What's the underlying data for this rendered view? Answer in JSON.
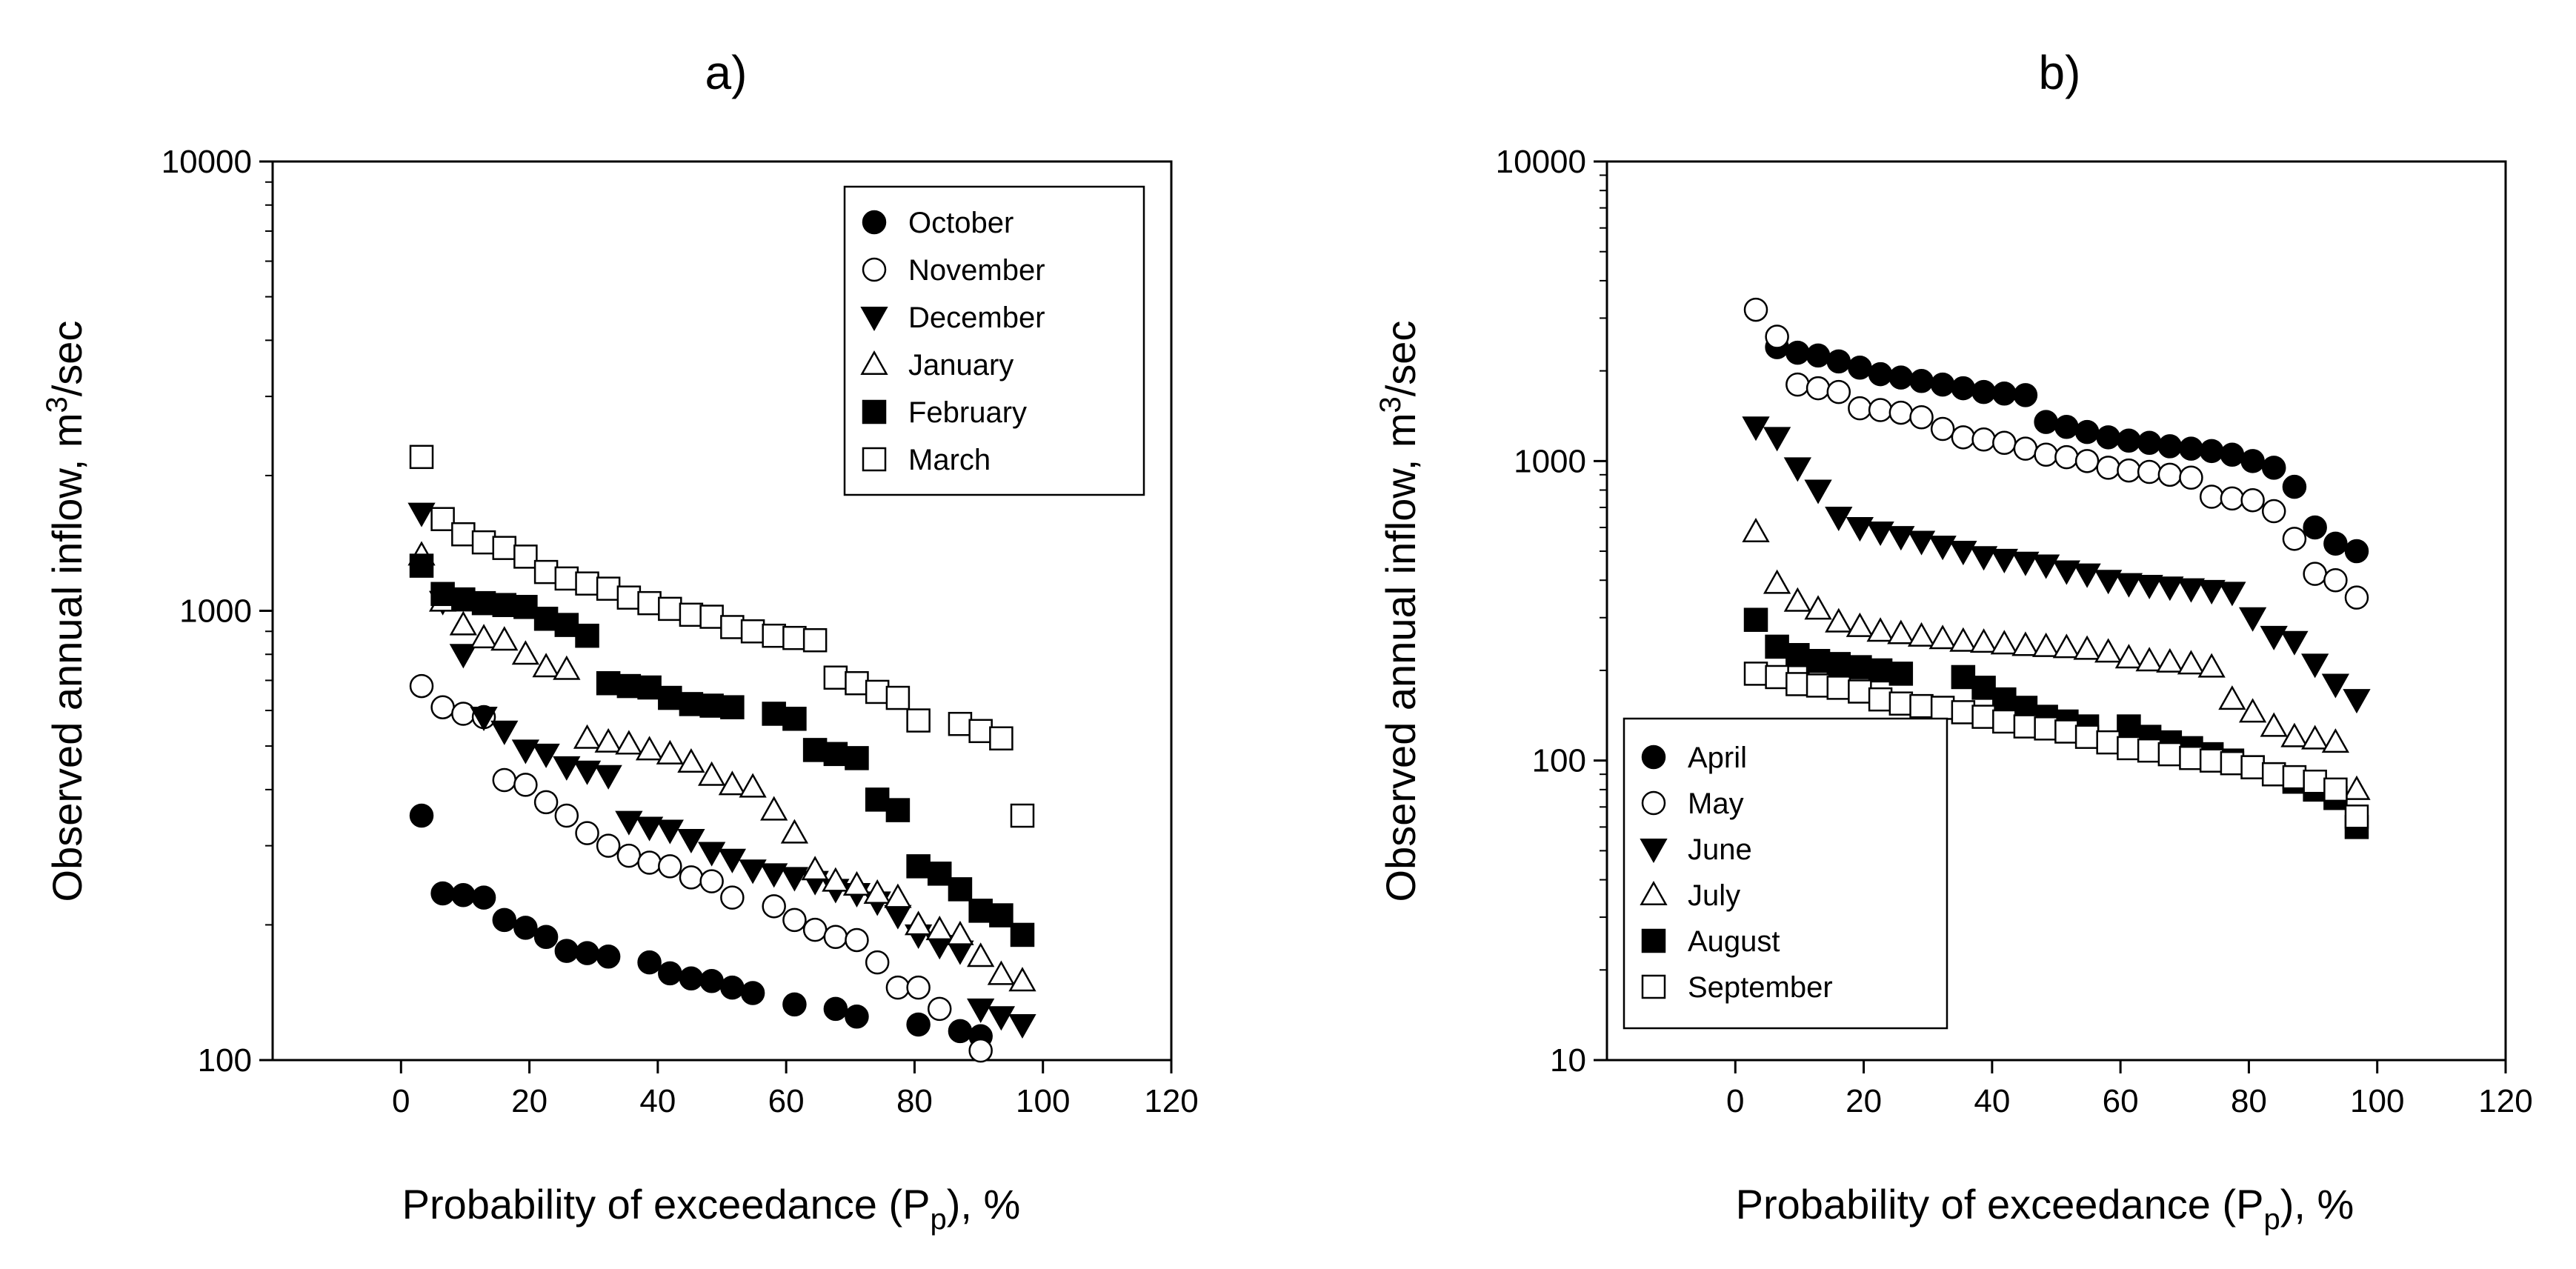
{
  "figure": {
    "panels_note": "Two log-scale scatter panels"
  },
  "chart_data": [
    {
      "type": "scatter",
      "title": "a)",
      "xlabel": "Probability of exceedance (P",
      "xlabel_sub": "p",
      "xlabel_tail": "), %",
      "ylabel": "Observed annual inflow, m",
      "ylabel_sup": "3",
      "ylabel_tail": "/sec",
      "xlim": [
        -20,
        120
      ],
      "ylim": [
        100,
        10000
      ],
      "yscale": "log",
      "xticks": [
        0,
        20,
        40,
        60,
        80,
        100,
        120
      ],
      "xtick_labels": [
        "0",
        "20",
        "40",
        "60",
        "80",
        "100",
        "120"
      ],
      "yticks": [
        100,
        1000,
        10000
      ],
      "ytick_labels": [
        "100",
        "1000",
        "10000"
      ],
      "legend_position": "top-right",
      "series": [
        {
          "name": "October",
          "marker": "circle",
          "filled": true,
          "x": [
            3.2,
            6.5,
            9.7,
            12.9,
            16.1,
            19.4,
            22.6,
            25.8,
            29.0,
            32.3,
            38.7,
            41.9,
            45.2,
            48.4,
            51.6,
            54.8,
            61.3,
            67.7,
            71.0,
            80.6,
            87.1,
            90.3
          ],
          "y": [
            350,
            235,
            233,
            230,
            205,
            197,
            188,
            175,
            173,
            170,
            165,
            156,
            152,
            150,
            145,
            141,
            133,
            130,
            125,
            120,
            116,
            113
          ]
        },
        {
          "name": "November",
          "marker": "circle",
          "filled": false,
          "x": [
            3.2,
            6.5,
            9.7,
            12.9,
            16.1,
            19.4,
            22.6,
            25.8,
            29.0,
            32.3,
            35.5,
            38.7,
            41.9,
            45.2,
            48.4,
            51.6,
            58.1,
            61.3,
            64.5,
            67.7,
            71.0,
            74.2,
            77.4,
            80.6,
            83.9,
            90.3
          ],
          "y": [
            680,
            610,
            590,
            580,
            420,
            410,
            375,
            350,
            320,
            300,
            285,
            275,
            270,
            255,
            250,
            230,
            220,
            205,
            195,
            188,
            185,
            165,
            145,
            145,
            130,
            105
          ]
        },
        {
          "name": "December",
          "marker": "triangle-down",
          "filled": true,
          "x": [
            3.2,
            6.5,
            9.7,
            12.9,
            16.1,
            19.4,
            22.6,
            25.8,
            29.0,
            32.3,
            35.5,
            38.7,
            41.9,
            45.2,
            48.4,
            51.6,
            54.8,
            58.1,
            61.3,
            64.5,
            67.7,
            71.0,
            74.2,
            77.4,
            80.6,
            83.9,
            87.1,
            90.3,
            93.5,
            96.8
          ],
          "y": [
            1650,
            1050,
            800,
            580,
            540,
            490,
            480,
            450,
            440,
            430,
            340,
            330,
            325,
            310,
            290,
            280,
            265,
            260,
            255,
            250,
            240,
            235,
            225,
            210,
            190,
            180,
            175,
            130,
            125,
            120
          ]
        },
        {
          "name": "January",
          "marker": "triangle-up",
          "filled": false,
          "x": [
            3.2,
            6.5,
            9.7,
            12.9,
            16.1,
            19.4,
            22.6,
            25.8,
            29.0,
            32.3,
            35.5,
            38.7,
            41.9,
            45.2,
            48.4,
            51.6,
            54.8,
            58.1,
            61.3,
            64.5,
            67.7,
            71.0,
            74.2,
            77.4,
            80.6,
            83.9,
            87.1,
            90.3,
            93.5,
            96.8
          ],
          "y": [
            1330,
            1050,
            930,
            870,
            860,
            800,
            750,
            740,
            520,
            510,
            505,
            490,
            480,
            460,
            430,
            410,
            405,
            360,
            320,
            265,
            250,
            245,
            235,
            230,
            200,
            195,
            190,
            170,
            155,
            150
          ]
        },
        {
          "name": "February",
          "marker": "square",
          "filled": true,
          "x": [
            3.2,
            6.5,
            9.7,
            12.9,
            16.1,
            19.4,
            22.6,
            25.8,
            29.0,
            32.3,
            35.5,
            38.7,
            41.9,
            45.2,
            48.4,
            51.6,
            58.1,
            61.3,
            64.5,
            67.7,
            71.0,
            74.2,
            77.4,
            80.6,
            83.9,
            87.1,
            90.3,
            93.5,
            96.8
          ],
          "y": [
            1260,
            1090,
            1060,
            1040,
            1030,
            1020,
            960,
            930,
            880,
            690,
            680,
            675,
            640,
            620,
            615,
            610,
            590,
            575,
            490,
            480,
            470,
            380,
            360,
            270,
            260,
            240,
            215,
            210,
            190
          ]
        },
        {
          "name": "March",
          "marker": "square",
          "filled": false,
          "x": [
            3.2,
            6.5,
            9.7,
            12.9,
            16.1,
            19.4,
            22.6,
            25.8,
            29.0,
            32.3,
            35.5,
            38.7,
            41.9,
            45.2,
            48.4,
            51.6,
            54.8,
            58.1,
            61.3,
            64.5,
            67.7,
            71.0,
            74.2,
            77.4,
            80.6,
            87.1,
            90.3,
            93.5,
            96.8
          ],
          "y": [
            2200,
            1600,
            1480,
            1420,
            1380,
            1320,
            1220,
            1180,
            1150,
            1120,
            1070,
            1040,
            1010,
            980,
            970,
            920,
            900,
            880,
            870,
            860,
            710,
            690,
            660,
            640,
            570,
            560,
            540,
            520,
            350
          ]
        }
      ]
    },
    {
      "type": "scatter",
      "title": "b)",
      "xlabel": "Probability of exceedance (P",
      "xlabel_sub": "p",
      "xlabel_tail": "), %",
      "ylabel": "Observed annual inflow, m",
      "ylabel_sup": "3",
      "ylabel_tail": "/sec",
      "xlim": [
        -20,
        120
      ],
      "ylim": [
        10,
        10000
      ],
      "yscale": "log",
      "xticks": [
        0,
        20,
        40,
        60,
        80,
        100,
        120
      ],
      "xtick_labels": [
        "0",
        "20",
        "40",
        "60",
        "80",
        "100",
        "120"
      ],
      "yticks": [
        10,
        100,
        1000,
        10000
      ],
      "ytick_labels": [
        "10",
        "100",
        "1000",
        "10000"
      ],
      "legend_position": "bottom-left",
      "series": [
        {
          "name": "April",
          "marker": "circle",
          "filled": true,
          "x": [
            6.5,
            9.7,
            12.9,
            16.1,
            19.4,
            22.6,
            25.8,
            29.0,
            32.3,
            35.5,
            38.7,
            41.9,
            45.2,
            48.4,
            51.6,
            54.8,
            58.1,
            61.3,
            64.5,
            67.7,
            71.0,
            74.2,
            77.4,
            80.6,
            83.9,
            87.1,
            90.3,
            93.5,
            96.8
          ],
          "y": [
            2400,
            2300,
            2250,
            2150,
            2050,
            1950,
            1900,
            1850,
            1800,
            1750,
            1700,
            1680,
            1660,
            1350,
            1300,
            1250,
            1200,
            1170,
            1150,
            1120,
            1100,
            1080,
            1050,
            1000,
            950,
            820,
            600,
            530,
            500
          ]
        },
        {
          "name": "May",
          "marker": "circle",
          "filled": false,
          "x": [
            3.2,
            6.5,
            9.7,
            12.9,
            16.1,
            19.4,
            22.6,
            25.8,
            29.0,
            32.3,
            35.5,
            38.7,
            41.9,
            45.2,
            48.4,
            51.6,
            54.8,
            58.1,
            61.3,
            64.5,
            67.7,
            71.0,
            74.2,
            77.4,
            80.6,
            83.9,
            87.1,
            90.3,
            93.5,
            96.8
          ],
          "y": [
            3200,
            2600,
            1800,
            1750,
            1700,
            1500,
            1480,
            1450,
            1400,
            1280,
            1200,
            1180,
            1150,
            1100,
            1050,
            1030,
            1000,
            950,
            930,
            920,
            900,
            880,
            760,
            750,
            740,
            680,
            550,
            420,
            400,
            350
          ]
        },
        {
          "name": "June",
          "marker": "triangle-down",
          "filled": true,
          "x": [
            3.2,
            6.5,
            9.7,
            12.9,
            16.1,
            19.4,
            22.6,
            25.8,
            29.0,
            32.3,
            35.5,
            38.7,
            41.9,
            45.2,
            48.4,
            51.6,
            54.8,
            58.1,
            61.3,
            64.5,
            67.7,
            71.0,
            74.2,
            77.4,
            80.6,
            83.9,
            87.1,
            90.3,
            93.5,
            96.8
          ],
          "y": [
            1300,
            1200,
            950,
            800,
            650,
            600,
            580,
            560,
            540,
            520,
            500,
            480,
            470,
            460,
            450,
            430,
            420,
            400,
            390,
            385,
            380,
            375,
            370,
            365,
            300,
            260,
            250,
            210,
            180,
            160
          ]
        },
        {
          "name": "July",
          "marker": "triangle-up",
          "filled": false,
          "x": [
            3.2,
            6.5,
            9.7,
            12.9,
            16.1,
            19.4,
            22.6,
            25.8,
            29.0,
            32.3,
            35.5,
            38.7,
            41.9,
            45.2,
            48.4,
            51.6,
            54.8,
            58.1,
            61.3,
            64.5,
            67.7,
            71.0,
            74.2,
            77.4,
            80.6,
            83.9,
            87.1,
            90.3,
            93.5,
            96.8
          ],
          "y": [
            580,
            390,
            340,
            320,
            290,
            280,
            270,
            265,
            260,
            255,
            250,
            248,
            245,
            242,
            240,
            238,
            235,
            230,
            220,
            215,
            213,
            210,
            205,
            160,
            145,
            130,
            120,
            118,
            115,
            80
          ]
        },
        {
          "name": "August",
          "marker": "square",
          "filled": true,
          "x": [
            3.2,
            6.5,
            9.7,
            12.9,
            16.1,
            19.4,
            22.6,
            25.8,
            35.5,
            38.7,
            41.9,
            45.2,
            48.4,
            51.6,
            54.8,
            61.3,
            64.5,
            67.7,
            71.0,
            74.2,
            77.4,
            80.6,
            83.9,
            87.1,
            90.3,
            93.5,
            96.8
          ],
          "y": [
            295,
            240,
            225,
            215,
            210,
            205,
            200,
            195,
            190,
            175,
            160,
            150,
            140,
            135,
            130,
            130,
            120,
            115,
            110,
            105,
            100,
            95,
            90,
            85,
            80,
            75,
            60
          ]
        },
        {
          "name": "September",
          "marker": "square",
          "filled": false,
          "x": [
            3.2,
            6.5,
            9.7,
            12.9,
            16.1,
            19.4,
            22.6,
            25.8,
            29.0,
            32.3,
            35.5,
            38.7,
            41.9,
            45.2,
            48.4,
            51.6,
            54.8,
            58.1,
            61.3,
            64.5,
            67.7,
            71.0,
            74.2,
            77.4,
            80.6,
            83.9,
            87.1,
            90.3,
            93.5,
            96.8
          ],
          "y": [
            195,
            190,
            180,
            178,
            175,
            170,
            160,
            155,
            152,
            150,
            145,
            140,
            135,
            130,
            128,
            125,
            120,
            115,
            110,
            108,
            105,
            102,
            100,
            98,
            95,
            90,
            88,
            85,
            80,
            65
          ]
        }
      ]
    }
  ]
}
